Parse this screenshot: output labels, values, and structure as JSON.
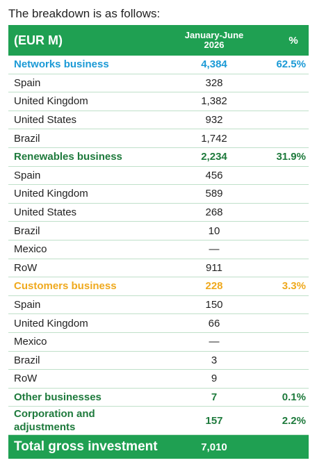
{
  "intro": "The breakdown is as follows:",
  "header": {
    "unit": "(EUR M)",
    "period": "January-June 2026",
    "percent": "%"
  },
  "sections": [
    {
      "name": "Networks business",
      "value": "4,384",
      "percent": "62.5%",
      "color": "#1b9ad6",
      "items": [
        {
          "label": "Spain",
          "value": "328"
        },
        {
          "label": "United Kingdom",
          "value": "1,382"
        },
        {
          "label": "United States",
          "value": "932"
        },
        {
          "label": "Brazil",
          "value": "1,742"
        }
      ]
    },
    {
      "name": "Renewables business",
      "value": "2,234",
      "percent": "31.9%",
      "color": "#1e7a3c",
      "items": [
        {
          "label": "Spain",
          "value": "456"
        },
        {
          "label": "United Kingdom",
          "value": "589"
        },
        {
          "label": "United States",
          "value": "268"
        },
        {
          "label": "Brazil",
          "value": "10"
        },
        {
          "label": "Mexico",
          "value": "—"
        },
        {
          "label": "RoW",
          "value": "911"
        }
      ]
    },
    {
      "name": "Customers business",
      "value": "228",
      "percent": "3.3%",
      "color": "#efa91d",
      "items": [
        {
          "label": "Spain",
          "value": "150"
        },
        {
          "label": "United Kingdom",
          "value": "66"
        },
        {
          "label": "Mexico",
          "value": "—"
        },
        {
          "label": "Brazil",
          "value": "3"
        },
        {
          "label": "RoW",
          "value": "9"
        }
      ]
    },
    {
      "name": "Other businesses",
      "value": "7",
      "percent": "0.1%",
      "color": "#1e7a3c",
      "items": []
    },
    {
      "name": "Corporation and adjustments",
      "value": "157",
      "percent": "2.2%",
      "color": "#1e7a3c",
      "items": []
    }
  ],
  "total": {
    "label": "Total gross investment",
    "value": "7,010"
  }
}
